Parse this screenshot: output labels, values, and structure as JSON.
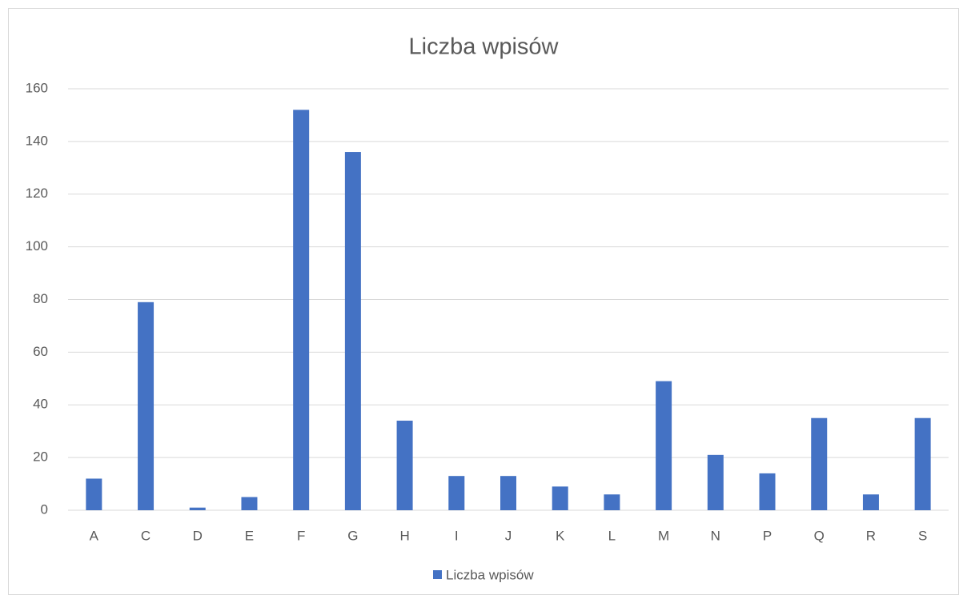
{
  "chart_data": {
    "type": "bar",
    "title": "Liczba wpisów",
    "categories": [
      "A",
      "C",
      "D",
      "E",
      "F",
      "G",
      "H",
      "I",
      "J",
      "K",
      "L",
      "M",
      "N",
      "P",
      "Q",
      "R",
      "S"
    ],
    "series": [
      {
        "name": "Liczba wpisów",
        "color": "#4472c4",
        "values": [
          12,
          79,
          1,
          5,
          152,
          136,
          34,
          13,
          13,
          9,
          6,
          49,
          21,
          14,
          35,
          6,
          35
        ]
      }
    ],
    "ylim": [
      0,
      160
    ],
    "yticks": [
      0,
      20,
      40,
      60,
      80,
      100,
      120,
      140,
      160
    ],
    "grid": true,
    "legend": "bottom"
  }
}
